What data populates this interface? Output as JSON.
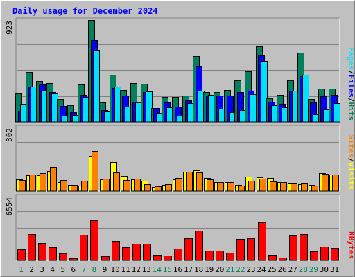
{
  "chart_data": {
    "type": "bar",
    "title": "Daily usage for December 2024",
    "categories": [
      "1",
      "2",
      "3",
      "4",
      "5",
      "6",
      "7",
      "8",
      "9",
      "10",
      "11",
      "12",
      "13",
      "14",
      "15",
      "16",
      "17",
      "18",
      "19",
      "20",
      "21",
      "22",
      "23",
      "24",
      "25",
      "26",
      "27",
      "28",
      "29",
      "30",
      "31"
    ],
    "weekend_days": [
      "1",
      "7",
      "8",
      "14",
      "15",
      "21",
      "22",
      "28",
      "29"
    ],
    "panels": [
      {
        "id": "hits-files-pages",
        "max_label": "923",
        "ymax": 923,
        "series": [
          {
            "name": "Hits",
            "color": "#00805c",
            "values": [
              258,
              452,
              370,
              353,
              207,
              149,
              336,
              923,
              178,
              425,
              289,
              353,
              348,
              124,
              224,
              226,
              240,
              594,
              270,
              270,
              290,
              378,
              457,
              685,
              212,
              248,
              378,
              625,
              207,
              302,
              302
            ]
          },
          {
            "name": "Files",
            "color": "#0000ff",
            "values": [
              103,
              320,
              341,
              268,
              142,
              86,
              247,
              741,
              109,
              306,
              240,
              179,
              270,
              124,
              178,
              137,
              192,
              505,
              239,
              239,
              239,
              273,
              281,
              603,
              180,
              164,
              284,
              416,
              173,
              235,
              243
            ]
          },
          {
            "name": "Pages",
            "color": "#00e0ff",
            "values": [
              162,
              320,
              280,
              259,
              55,
              62,
              225,
              650,
              94,
              320,
              136,
              178,
              276,
              84,
              132,
              58,
              170,
              281,
              244,
              118,
              90,
              107,
              252,
              552,
              149,
              131,
              281,
              426,
              70,
              110,
              168
            ]
          }
        ],
        "labels": [
          {
            "text": "Hits",
            "color": "#00805c"
          },
          {
            "text": "Files",
            "color": "#0000ff"
          },
          {
            "text": "Pages",
            "color": "#00e0ff"
          }
        ]
      },
      {
        "id": "visits-sites",
        "max_label": "302",
        "ymax": 302,
        "series": [
          {
            "name": "Visits",
            "color": "#ffff00",
            "values": [
              56,
              77,
              77,
              94,
              44,
              30,
              26,
              169,
              57,
              138,
              72,
              55,
              48,
              19,
              29,
              56,
              92,
              97,
              63,
              44,
              44,
              28,
              69,
              65,
              63,
              44,
              38,
              32,
              29,
              85,
              78
            ]
          },
          {
            "name": "Sites",
            "color": "#ff8000",
            "values": [
              52,
              78,
              85,
              116,
              54,
              28,
              50,
              192,
              59,
              90,
              52,
              60,
              34,
              24,
              34,
              61,
              92,
              89,
              56,
              44,
              43,
              26,
              49,
              58,
              47,
              42,
              38,
              41,
              26,
              82,
              78
            ]
          }
        ],
        "labels": [
          {
            "text": "Visits",
            "color": "#ffff00"
          },
          {
            "text": "Sites",
            "color": "#ff8000"
          }
        ]
      },
      {
        "id": "kbytes",
        "max_label": "6554",
        "ymax": 6554,
        "series": [
          {
            "name": "KBytes",
            "color": "#ff0000",
            "values": [
              1111,
              2699,
              1748,
              1335,
              699,
              222,
              2667,
              4161,
              417,
              1986,
              1366,
              1684,
              1732,
              540,
              477,
              1208,
              2255,
              3096,
              1001,
              1017,
              762,
              2207,
              2302,
              3937,
              540,
              285,
              2588,
              2699,
              953,
              1430,
              1271
            ]
          }
        ],
        "labels": [
          {
            "text": "KBytes",
            "color": "#ff0000"
          }
        ]
      }
    ],
    "grid": true
  }
}
